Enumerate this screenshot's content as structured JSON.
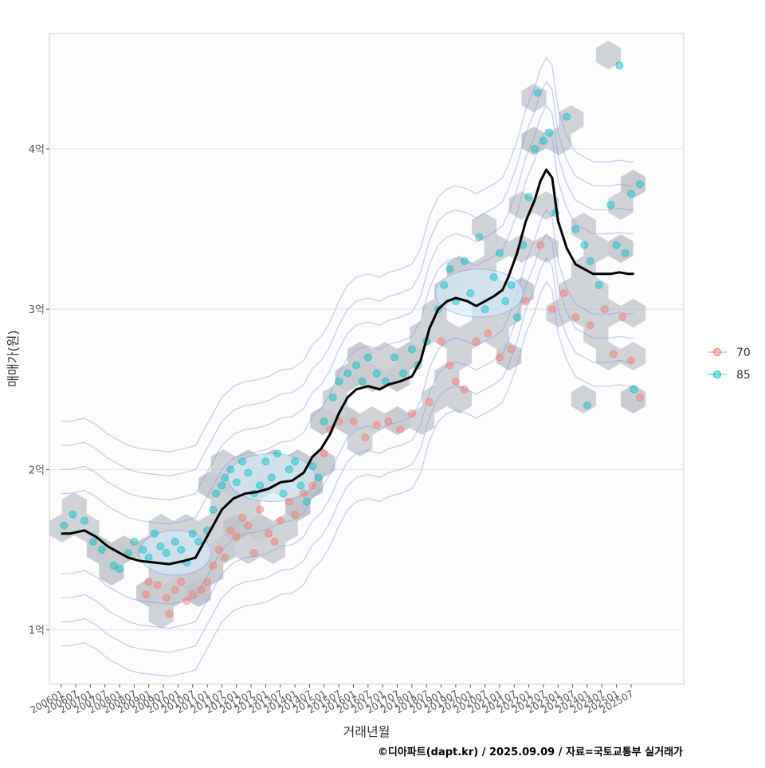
{
  "chart_data": {
    "type": "scatter",
    "title": "",
    "xlabel": "거래년월",
    "ylabel": "매매가(원)",
    "caption": "©디아파트(dapt.kr) / 2025.09.09 / 자료=국토교통부 실거래가",
    "x_ticks": [
      "200601",
      "200607",
      "200701",
      "200707",
      "200801",
      "200807",
      "200901",
      "200907",
      "201001",
      "201007",
      "201101",
      "201107",
      "201201",
      "201207",
      "201301",
      "201307",
      "201401",
      "201407",
      "201501",
      "201507",
      "201601",
      "201607",
      "201701",
      "201707",
      "201801",
      "201807",
      "201901",
      "201907",
      "202001",
      "202007",
      "202101",
      "202107",
      "202201",
      "202207",
      "202301",
      "202307",
      "202401",
      "202407",
      "202501",
      "202507"
    ],
    "y_ticks": [
      {
        "value": 1,
        "label": "1억"
      },
      {
        "value": 2,
        "label": "2억"
      },
      {
        "value": 3,
        "label": "3억"
      },
      {
        "value": 4,
        "label": "4억"
      }
    ],
    "xlim": [
      2005.6,
      2027.3
    ],
    "ylim": [
      0.66,
      4.72
    ],
    "grid": true,
    "legend_position": "right",
    "series": [
      {
        "name": "70",
        "color": "#F8766D",
        "points": [
          [
            2008.9,
            1.22
          ],
          [
            2009.0,
            1.3
          ],
          [
            2009.3,
            1.28
          ],
          [
            2009.6,
            1.2
          ],
          [
            2009.7,
            1.1
          ],
          [
            2009.9,
            1.25
          ],
          [
            2010.1,
            1.3
          ],
          [
            2010.3,
            1.18
          ],
          [
            2010.5,
            1.22
          ],
          [
            2010.8,
            1.25
          ],
          [
            2011.0,
            1.3
          ],
          [
            2011.2,
            1.4
          ],
          [
            2011.4,
            1.5
          ],
          [
            2011.6,
            1.45
          ],
          [
            2011.8,
            1.62
          ],
          [
            2012.0,
            1.58
          ],
          [
            2012.2,
            1.7
          ],
          [
            2012.4,
            1.65
          ],
          [
            2012.6,
            1.48
          ],
          [
            2012.8,
            1.75
          ],
          [
            2013.1,
            1.6
          ],
          [
            2013.3,
            1.55
          ],
          [
            2013.5,
            1.68
          ],
          [
            2013.8,
            1.8
          ],
          [
            2014.0,
            1.72
          ],
          [
            2014.3,
            1.85
          ],
          [
            2014.6,
            1.9
          ],
          [
            2015.0,
            2.1
          ],
          [
            2015.2,
            2.25
          ],
          [
            2015.5,
            2.3
          ],
          [
            2016.0,
            2.3
          ],
          [
            2016.4,
            2.2
          ],
          [
            2016.8,
            2.28
          ],
          [
            2017.2,
            2.3
          ],
          [
            2017.6,
            2.25
          ],
          [
            2018.0,
            2.35
          ],
          [
            2018.6,
            2.42
          ],
          [
            2019.0,
            2.8
          ],
          [
            2019.3,
            2.65
          ],
          [
            2019.5,
            2.55
          ],
          [
            2019.8,
            2.5
          ],
          [
            2020.2,
            2.8
          ],
          [
            2020.6,
            2.85
          ],
          [
            2021.0,
            2.7
          ],
          [
            2021.4,
            2.75
          ],
          [
            2021.9,
            3.05
          ],
          [
            2022.4,
            3.4
          ],
          [
            2022.8,
            3.0
          ],
          [
            2023.2,
            3.1
          ],
          [
            2023.6,
            2.95
          ],
          [
            2024.1,
            2.9
          ],
          [
            2024.6,
            3.0
          ],
          [
            2024.9,
            2.72
          ],
          [
            2025.2,
            2.95
          ],
          [
            2025.5,
            2.68
          ],
          [
            2025.8,
            2.45
          ]
        ]
      },
      {
        "name": "85",
        "color": "#00BFC4",
        "points": [
          [
            2006.1,
            1.65
          ],
          [
            2006.4,
            1.72
          ],
          [
            2006.8,
            1.68
          ],
          [
            2007.1,
            1.55
          ],
          [
            2007.4,
            1.5
          ],
          [
            2007.8,
            1.4
          ],
          [
            2008.0,
            1.38
          ],
          [
            2008.3,
            1.48
          ],
          [
            2008.5,
            1.55
          ],
          [
            2008.8,
            1.5
          ],
          [
            2009.0,
            1.45
          ],
          [
            2009.2,
            1.6
          ],
          [
            2009.4,
            1.52
          ],
          [
            2009.6,
            1.48
          ],
          [
            2009.9,
            1.55
          ],
          [
            2010.1,
            1.5
          ],
          [
            2010.3,
            1.42
          ],
          [
            2010.5,
            1.6
          ],
          [
            2010.7,
            1.55
          ],
          [
            2011.0,
            1.62
          ],
          [
            2011.2,
            1.75
          ],
          [
            2011.3,
            1.85
          ],
          [
            2011.5,
            1.9
          ],
          [
            2011.6,
            1.95
          ],
          [
            2011.8,
            2.0
          ],
          [
            2012.0,
            1.92
          ],
          [
            2012.2,
            2.05
          ],
          [
            2012.4,
            1.98
          ],
          [
            2012.6,
            1.85
          ],
          [
            2012.8,
            1.9
          ],
          [
            2013.0,
            2.05
          ],
          [
            2013.2,
            1.95
          ],
          [
            2013.4,
            2.1
          ],
          [
            2013.6,
            1.85
          ],
          [
            2013.8,
            2.0
          ],
          [
            2014.0,
            2.05
          ],
          [
            2014.2,
            1.9
          ],
          [
            2014.4,
            1.8
          ],
          [
            2014.6,
            2.02
          ],
          [
            2014.8,
            1.95
          ],
          [
            2015.0,
            2.3
          ],
          [
            2015.3,
            2.45
          ],
          [
            2015.5,
            2.55
          ],
          [
            2015.8,
            2.6
          ],
          [
            2016.1,
            2.65
          ],
          [
            2016.3,
            2.55
          ],
          [
            2016.5,
            2.7
          ],
          [
            2016.8,
            2.6
          ],
          [
            2017.1,
            2.55
          ],
          [
            2017.4,
            2.7
          ],
          [
            2017.7,
            2.6
          ],
          [
            2018.0,
            2.75
          ],
          [
            2018.2,
            2.65
          ],
          [
            2018.5,
            2.8
          ],
          [
            2018.9,
            3.0
          ],
          [
            2019.1,
            3.15
          ],
          [
            2019.3,
            3.25
          ],
          [
            2019.5,
            3.05
          ],
          [
            2019.8,
            3.3
          ],
          [
            2020.0,
            3.1
          ],
          [
            2020.3,
            3.45
          ],
          [
            2020.5,
            3.0
          ],
          [
            2020.8,
            3.2
          ],
          [
            2021.0,
            3.35
          ],
          [
            2021.2,
            3.05
          ],
          [
            2021.4,
            3.15
          ],
          [
            2021.6,
            2.95
          ],
          [
            2021.8,
            3.4
          ],
          [
            2022.0,
            3.7
          ],
          [
            2022.2,
            4.0
          ],
          [
            2022.3,
            4.35
          ],
          [
            2022.5,
            4.05
          ],
          [
            2022.7,
            4.1
          ],
          [
            2022.9,
            3.6
          ],
          [
            2023.3,
            4.2
          ],
          [
            2023.6,
            3.5
          ],
          [
            2023.9,
            3.4
          ],
          [
            2024.1,
            3.3
          ],
          [
            2024.4,
            3.15
          ],
          [
            2024.8,
            3.65
          ],
          [
            2025.0,
            3.4
          ],
          [
            2025.1,
            4.52
          ],
          [
            2025.3,
            3.35
          ],
          [
            2025.5,
            3.72
          ],
          [
            2025.8,
            3.78
          ],
          [
            2024.0,
            2.4
          ],
          [
            2025.6,
            2.5
          ]
        ]
      }
    ],
    "trend_line": {
      "color": "#000000",
      "points": [
        [
          2006.0,
          1.6
        ],
        [
          2006.3,
          1.6
        ],
        [
          2006.8,
          1.62
        ],
        [
          2007.2,
          1.58
        ],
        [
          2007.6,
          1.52
        ],
        [
          2008.0,
          1.48
        ],
        [
          2008.3,
          1.45
        ],
        [
          2008.7,
          1.43
        ],
        [
          2009.2,
          1.42
        ],
        [
          2009.7,
          1.41
        ],
        [
          2010.2,
          1.43
        ],
        [
          2010.6,
          1.45
        ],
        [
          2010.9,
          1.55
        ],
        [
          2011.2,
          1.65
        ],
        [
          2011.5,
          1.75
        ],
        [
          2011.9,
          1.82
        ],
        [
          2012.3,
          1.85
        ],
        [
          2012.7,
          1.86
        ],
        [
          2013.1,
          1.88
        ],
        [
          2013.5,
          1.92
        ],
        [
          2013.9,
          1.93
        ],
        [
          2014.3,
          1.98
        ],
        [
          2014.6,
          2.08
        ],
        [
          2014.9,
          2.13
        ],
        [
          2015.2,
          2.22
        ],
        [
          2015.5,
          2.35
        ],
        [
          2015.8,
          2.45
        ],
        [
          2016.1,
          2.5
        ],
        [
          2016.5,
          2.52
        ],
        [
          2016.9,
          2.5
        ],
        [
          2017.2,
          2.53
        ],
        [
          2017.6,
          2.55
        ],
        [
          2018.0,
          2.58
        ],
        [
          2018.3,
          2.68
        ],
        [
          2018.6,
          2.88
        ],
        [
          2018.9,
          3.0
        ],
        [
          2019.2,
          3.05
        ],
        [
          2019.5,
          3.07
        ],
        [
          2019.9,
          3.05
        ],
        [
          2020.2,
          3.02
        ],
        [
          2020.5,
          3.05
        ],
        [
          2020.8,
          3.08
        ],
        [
          2021.1,
          3.12
        ],
        [
          2021.3,
          3.2
        ],
        [
          2021.6,
          3.35
        ],
        [
          2021.9,
          3.55
        ],
        [
          2022.2,
          3.68
        ],
        [
          2022.4,
          3.8
        ],
        [
          2022.6,
          3.87
        ],
        [
          2022.8,
          3.82
        ],
        [
          2023.0,
          3.55
        ],
        [
          2023.3,
          3.38
        ],
        [
          2023.6,
          3.28
        ],
        [
          2023.9,
          3.25
        ],
        [
          2024.2,
          3.22
        ],
        [
          2024.5,
          3.22
        ],
        [
          2024.8,
          3.22
        ],
        [
          2025.1,
          3.23
        ],
        [
          2025.4,
          3.22
        ],
        [
          2025.6,
          3.22
        ]
      ]
    }
  }
}
